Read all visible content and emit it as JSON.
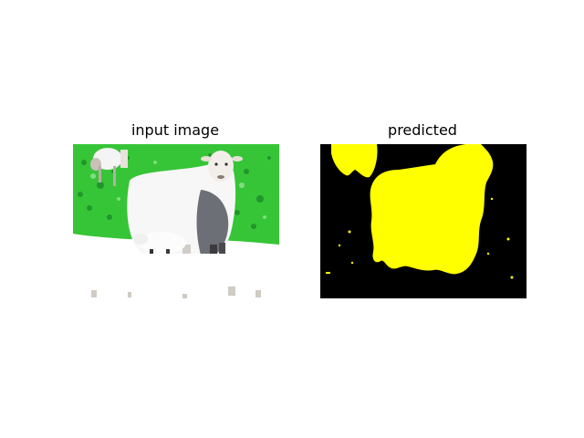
{
  "panels": [
    {
      "title": "input image"
    },
    {
      "title": "predicted"
    }
  ],
  "colors": {
    "mask_foreground": "#ffff00",
    "mask_background": "#000000",
    "grass": "#33c433",
    "overexposed": "#ffffff"
  }
}
